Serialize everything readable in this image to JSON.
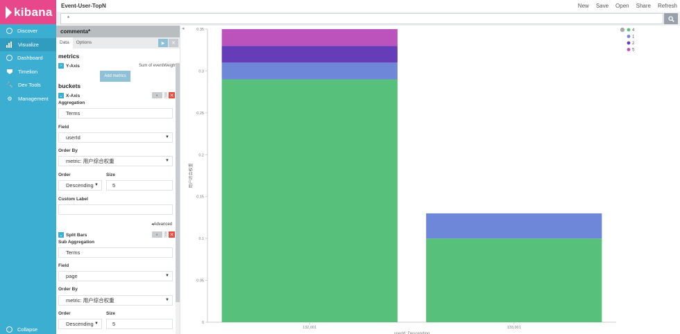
{
  "brand": {
    "name": "kibana"
  },
  "nav": {
    "items": [
      {
        "label": "Discover",
        "icon": "compass-icon",
        "active": false
      },
      {
        "label": "Visualize",
        "icon": "bar-chart-icon",
        "active": true
      },
      {
        "label": "Dashboard",
        "icon": "dashboard-icon",
        "active": false
      },
      {
        "label": "Timelion",
        "icon": "shield-icon",
        "active": false
      },
      {
        "label": "Dev Tools",
        "icon": "wrench-icon",
        "active": false
      },
      {
        "label": "Management",
        "icon": "gear-icon",
        "active": false
      }
    ],
    "collapse_label": "Collapse"
  },
  "topbar": {
    "title": "Event-User-TopN",
    "menu": [
      "New",
      "Save",
      "Open",
      "Share",
      "Refresh"
    ]
  },
  "search": {
    "value": "*"
  },
  "editor": {
    "header": "commenta*",
    "tabs": [
      "Data",
      "Options"
    ],
    "metrics_title": "metrics",
    "metric": {
      "axis": "Y-Axis",
      "desc": "Sum of eventWeight"
    },
    "add_metrics": "Add metrics",
    "buckets_title": "buckets",
    "xaxis": {
      "name": "X-Axis",
      "aggregation_label": "Aggregation",
      "aggregation": "Terms",
      "field_label": "Field",
      "field": "userId",
      "orderby_label": "Order By",
      "orderby": "metric: 用户综合权重",
      "order_label": "Order",
      "order": "Descending",
      "size_label": "Size",
      "size": "5",
      "custom_label": "Custom Label",
      "advanced": "Advanced"
    },
    "split": {
      "name": "Split Bars",
      "sub_agg_label": "Sub Aggregation",
      "sub_agg": "Terms",
      "field_label": "Field",
      "field": "page",
      "orderby_label": "Order By",
      "orderby": "metric: 用户综合权重",
      "order_label": "Order",
      "order": "Descending",
      "size_label": "Size",
      "size": "5"
    }
  },
  "chart_data": {
    "type": "bar",
    "stacked": true,
    "categories": [
      "132,001",
      "133,001"
    ],
    "series": [
      {
        "name": "4",
        "color": "#57c17b",
        "values": [
          0.29,
          0.1
        ]
      },
      {
        "name": "1",
        "color": "#6f87d8",
        "values": [
          0.02,
          0.03
        ]
      },
      {
        "name": "2",
        "color": "#663db8",
        "values": [
          0.02,
          0
        ]
      },
      {
        "name": "5",
        "color": "#bc52bc",
        "values": [
          0.02,
          0
        ]
      }
    ],
    "yticks": [
      "0",
      "0.05",
      "0.1",
      "0.15",
      "0.2",
      "0.25",
      "0.3",
      "0.35"
    ],
    "ylim": [
      0,
      0.35
    ],
    "ylabel": "用户综合权重",
    "xlabel": "userId: Descending",
    "legend_position": "top-right"
  }
}
